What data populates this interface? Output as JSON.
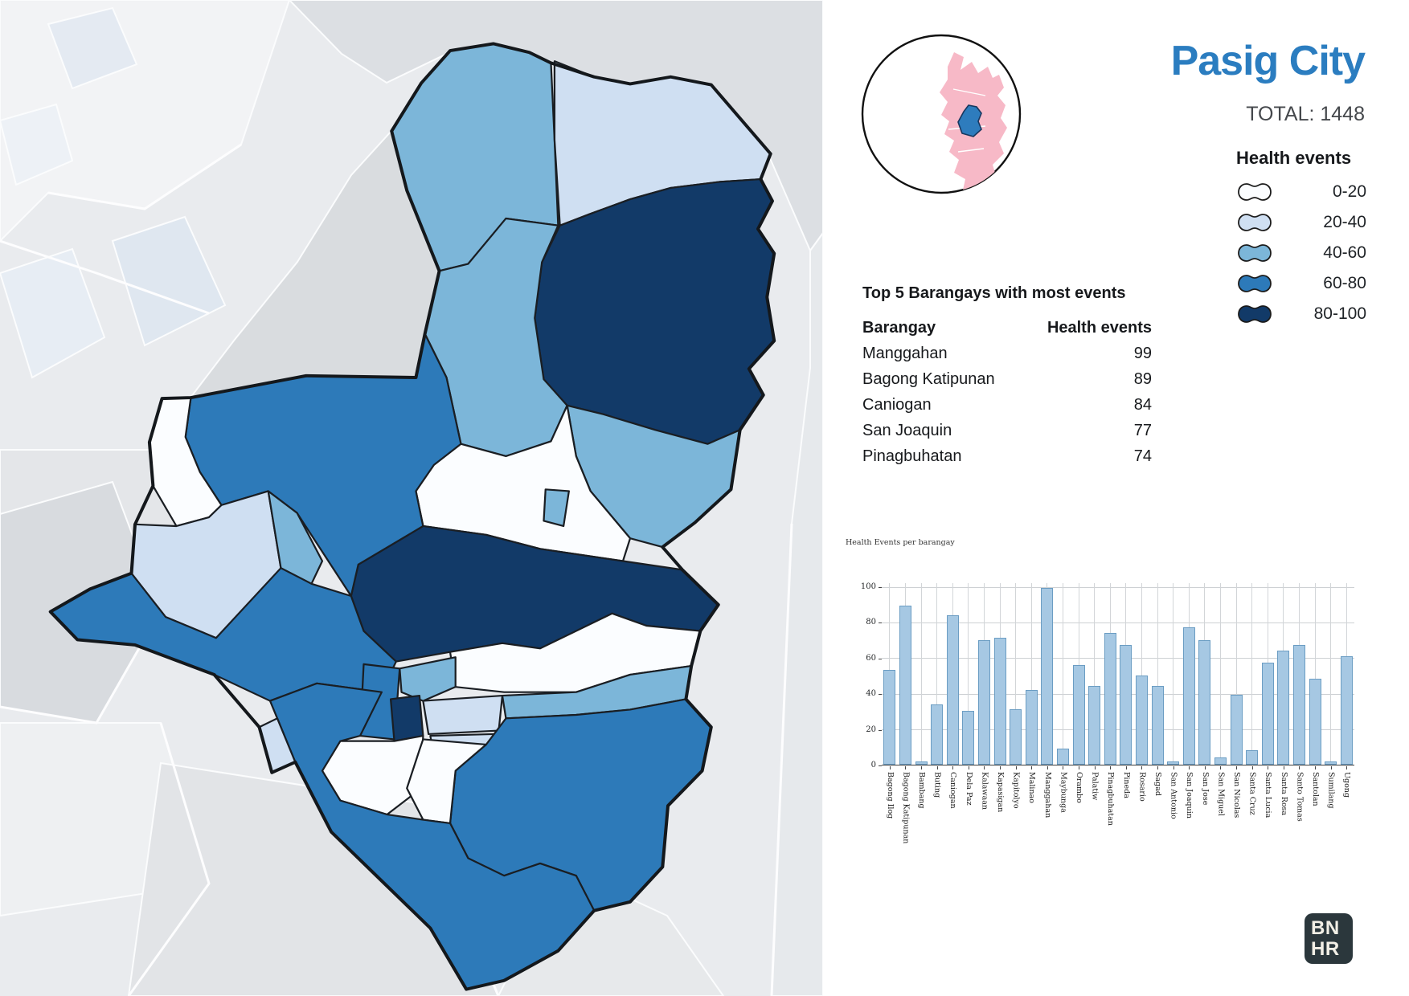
{
  "header": {
    "city": "Pasig City",
    "total": "TOTAL: 1448"
  },
  "legend": {
    "title": "Health events",
    "classes": [
      {
        "label": "0-20",
        "color": "#fbfdff"
      },
      {
        "label": "20-40",
        "color": "#cfdff2"
      },
      {
        "label": "40-60",
        "color": "#7cb6d9"
      },
      {
        "label": "60-80",
        "color": "#2d7ab9"
      },
      {
        "label": "80-100",
        "color": "#123a68"
      }
    ],
    "swatch_outline": "#1b1b1b"
  },
  "inset": {
    "region_color": "#f7b9c7",
    "highlight_color": "#2e7cbd",
    "circle_outline": "#111111"
  },
  "top5": {
    "title": "Top 5 Barangays with most events",
    "col_barangay": "Barangay",
    "col_events": "Health events",
    "rows": [
      {
        "barangay": "Manggahan",
        "events": 99
      },
      {
        "barangay": "Bagong Katipunan",
        "events": 89
      },
      {
        "barangay": "Caniogan",
        "events": 84
      },
      {
        "barangay": "San Joaquin",
        "events": 77
      },
      {
        "barangay": "Pinagbuhatan",
        "events": 74
      }
    ]
  },
  "chart_data": {
    "type": "bar",
    "title": "Health Events per barangay",
    "categories": [
      "Bagong Ilog",
      "Bagong Katipunan",
      "Bambang",
      "Buting",
      "Caniogan",
      "Dela Paz",
      "Kalawaan",
      "Kapasigan",
      "Kapitolyo",
      "Malinao",
      "Manggahan",
      "Maybunga",
      "Orambo",
      "Palatiw",
      "Pinagbuhatan",
      "Pineda",
      "Rosario",
      "Sagad",
      "San Antonio",
      "San Joaquin",
      "San Jose",
      "San Miguel",
      "San Nicolas",
      "Santa Cruz",
      "Santa Lucia",
      "Santa Rosa",
      "Santo Tomas",
      "Santolan",
      "Sumilang",
      "Ugong"
    ],
    "values": [
      53,
      89,
      2,
      34,
      84,
      30,
      70,
      71,
      31,
      42,
      99,
      9,
      56,
      44,
      74,
      67,
      50,
      44,
      2,
      77,
      70,
      4,
      39,
      8,
      57,
      64,
      67,
      48,
      2,
      61
    ],
    "ylabel": "",
    "xlabel": "",
    "ylim": [
      0,
      100
    ],
    "yticks": [
      0,
      20,
      40,
      60,
      80,
      100
    ],
    "grid": true,
    "legend_position": "none",
    "bar_color": "#a6c8e3",
    "bar_border": "#6b9dc3"
  },
  "logo": {
    "line1": "BN",
    "line2": "HR"
  }
}
